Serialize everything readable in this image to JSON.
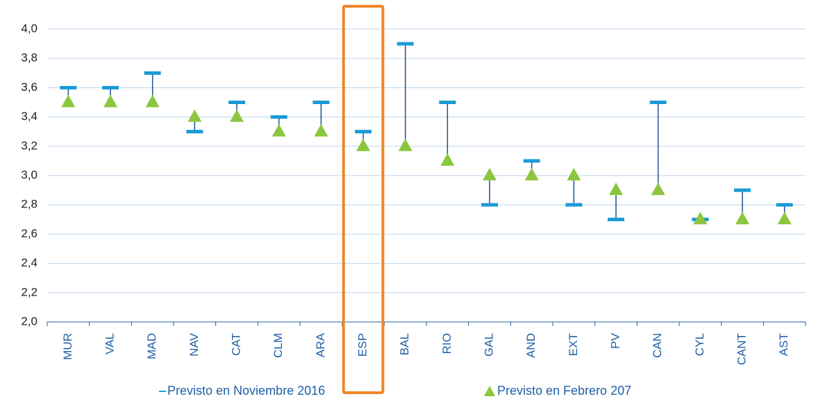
{
  "chart_data": {
    "type": "range-dot",
    "categories": [
      "MUR",
      "VAL",
      "MAD",
      "NAV",
      "CAT",
      "CLM",
      "ARA",
      "ESP",
      "BAL",
      "RIO",
      "GAL",
      "AND",
      "EXT",
      "PV",
      "CAN",
      "CYL",
      "CANT",
      "AST"
    ],
    "series": [
      {
        "name": "Previsto en Noviembre 2016",
        "color": "#1a9ad6",
        "values": [
          3.6,
          3.6,
          3.7,
          3.3,
          3.5,
          3.4,
          3.5,
          3.3,
          3.9,
          3.5,
          2.8,
          3.1,
          2.8,
          2.7,
          3.5,
          2.7,
          2.9,
          2.8
        ]
      },
      {
        "name": "Previsto en Febrero 207",
        "color": "#8cc63f",
        "values": [
          3.5,
          3.5,
          3.5,
          3.4,
          3.4,
          3.3,
          3.3,
          3.2,
          3.2,
          3.1,
          3.0,
          3.0,
          3.0,
          2.9,
          2.9,
          2.7,
          2.7,
          2.7
        ]
      }
    ],
    "connector_color": "#1f4e9a",
    "highlight": {
      "category": "ESP",
      "color": "#f0862a"
    },
    "ylim": [
      2.0,
      4.0
    ],
    "yticks": [
      {
        "value": 2.0,
        "label": "2,0"
      },
      {
        "value": 2.2,
        "label": "2,2"
      },
      {
        "value": 2.4,
        "label": "2,4"
      },
      {
        "value": 2.6,
        "label": "2,6"
      },
      {
        "value": 2.8,
        "label": "2,8"
      },
      {
        "value": 3.0,
        "label": "3,0"
      },
      {
        "value": 3.2,
        "label": "3,2"
      },
      {
        "value": 3.4,
        "label": "3,4"
      },
      {
        "value": 3.6,
        "label": "3,6"
      },
      {
        "value": 3.8,
        "label": "3,8"
      },
      {
        "value": 4.0,
        "label": "4,0"
      }
    ],
    "grid": true
  }
}
